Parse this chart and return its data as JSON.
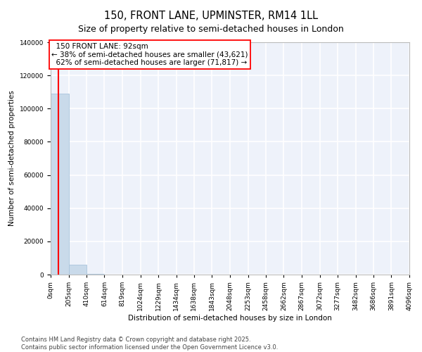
{
  "title": "150, FRONT LANE, UPMINSTER, RM14 1LL",
  "subtitle": "Size of property relative to semi-detached houses in London",
  "xlabel": "Distribution of semi-detached houses by size in London",
  "ylabel": "Number of semi-detached properties",
  "property_size": 92,
  "property_label": "150 FRONT LANE: 92sqm",
  "pct_smaller": 38,
  "count_smaller": 43621,
  "pct_larger": 62,
  "count_larger": 71817,
  "bar_color": "#c9daea",
  "bar_edge_color": "#a8c4dc",
  "vline_color": "red",
  "annotation_fill": "white",
  "background_color": "#eef2fa",
  "grid_color": "white",
  "ylim": [
    0,
    140000
  ],
  "yticks": [
    0,
    20000,
    40000,
    60000,
    80000,
    100000,
    120000,
    140000
  ],
  "bin_edges": [
    0,
    205,
    410,
    614,
    819,
    1024,
    1229,
    1434,
    1638,
    1843,
    2048,
    2253,
    2458,
    2662,
    2867,
    3072,
    3277,
    3482,
    3686,
    3891,
    4096
  ],
  "bin_labels": [
    "0sqm",
    "205sqm",
    "410sqm",
    "614sqm",
    "819sqm",
    "1024sqm",
    "1229sqm",
    "1434sqm",
    "1638sqm",
    "1843sqm",
    "2048sqm",
    "2253sqm",
    "2458sqm",
    "2662sqm",
    "2867sqm",
    "3072sqm",
    "3277sqm",
    "3482sqm",
    "3686sqm",
    "3891sqm",
    "4096sqm"
  ],
  "bar_heights": [
    109000,
    5800,
    300,
    50,
    15,
    5,
    3,
    2,
    1,
    1,
    0,
    0,
    0,
    0,
    0,
    0,
    0,
    0,
    0,
    0
  ],
  "footer": "Contains HM Land Registry data © Crown copyright and database right 2025.\nContains public sector information licensed under the Open Government Licence v3.0.",
  "title_fontsize": 10.5,
  "subtitle_fontsize": 9,
  "axis_label_fontsize": 7.5,
  "tick_fontsize": 6.5,
  "annotation_fontsize": 7.5,
  "footer_fontsize": 6
}
